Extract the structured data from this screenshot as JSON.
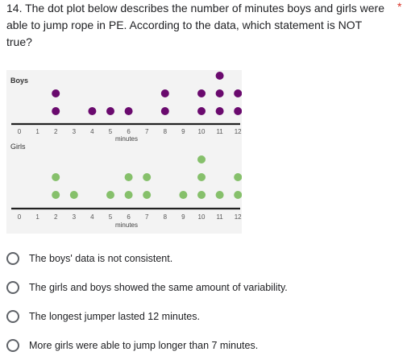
{
  "question": {
    "text": "14.  The dot plot below describes the number of minutes boys and girls were able to jump rope in PE.  According to the data, which statement is NOT true?",
    "required_mark": "*"
  },
  "chart_data": [
    {
      "type": "scatter",
      "group_label": "Boys",
      "xlabel": "minutes",
      "ticks": [
        0,
        1,
        2,
        3,
        4,
        5,
        6,
        7,
        8,
        9,
        10,
        11,
        12
      ],
      "dot_color": "#6a0a6e",
      "counts": {
        "0": 0,
        "1": 0,
        "2": 2,
        "3": 0,
        "4": 1,
        "5": 1,
        "6": 1,
        "7": 0,
        "8": 2,
        "9": 0,
        "10": 2,
        "11": 3,
        "12": 2
      }
    },
    {
      "type": "scatter",
      "group_label": "Girls",
      "xlabel": "minutes",
      "ticks": [
        0,
        1,
        2,
        3,
        4,
        5,
        6,
        7,
        8,
        9,
        10,
        11,
        12
      ],
      "dot_color": "#86c06b",
      "counts": {
        "0": 0,
        "1": 0,
        "2": 2,
        "3": 1,
        "4": 0,
        "5": 1,
        "6": 2,
        "7": 2,
        "8": 0,
        "9": 1,
        "10": 3,
        "11": 1,
        "12": 2
      }
    }
  ],
  "options": [
    {
      "label": "The boys' data is not consistent."
    },
    {
      "label": "The girls and boys showed the same amount of variability."
    },
    {
      "label": "The longest jumper lasted 12 minutes."
    },
    {
      "label": "More girls were able to jump longer than 7 minutes."
    }
  ]
}
